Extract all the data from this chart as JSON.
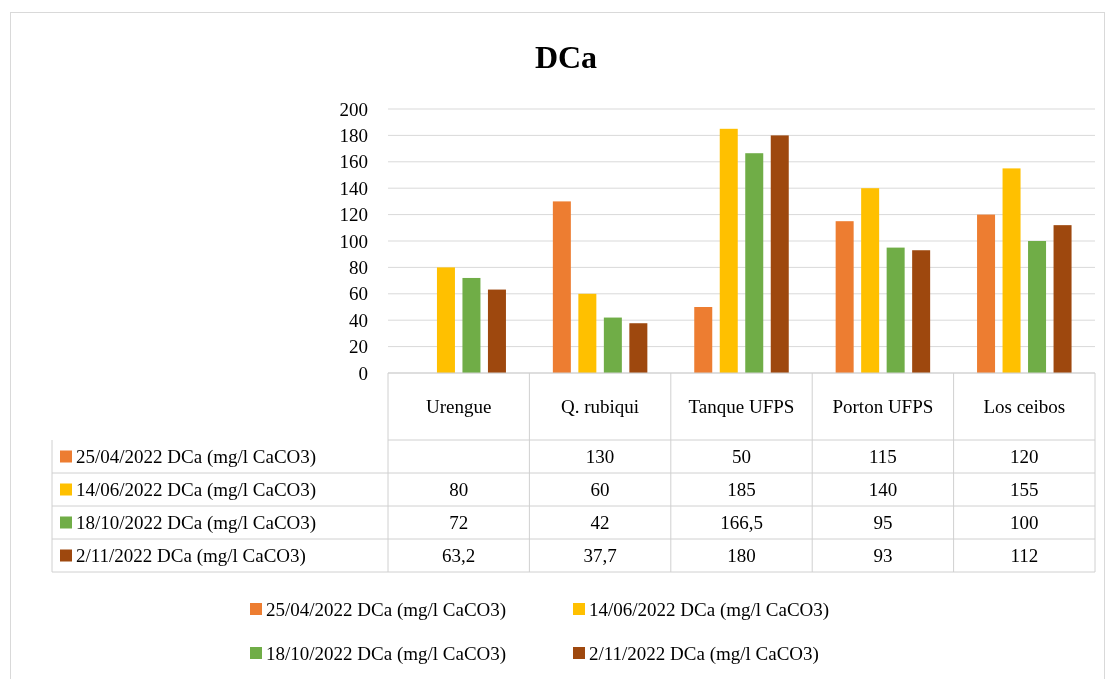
{
  "chart_data": {
    "type": "bar",
    "title": "DCa",
    "categories": [
      "Urengue",
      "Q. rubiqui",
      "Tanque UFPS",
      "Porton UFPS",
      "Los ceibos"
    ],
    "series": [
      {
        "name": "25/04/2022 DCa (mg/l CaCO3)",
        "color": "#ed7d31",
        "values": [
          null,
          130,
          50,
          115,
          120
        ],
        "value_labels": [
          null,
          "130",
          "50",
          "115",
          "120"
        ]
      },
      {
        "name": "14/06/2022 DCa (mg/l CaCO3)",
        "color": "#ffc000",
        "values": [
          80,
          60,
          185,
          140,
          155
        ],
        "value_labels": [
          "80",
          "60",
          "185",
          "140",
          "155"
        ]
      },
      {
        "name": "18/10/2022 DCa (mg/l CaCO3)",
        "color": "#70ad47",
        "values": [
          72,
          42,
          166.5,
          95,
          100
        ],
        "value_labels": [
          "72",
          "42",
          "166,5",
          "95",
          "100"
        ]
      },
      {
        "name": "2/11/2022 DCa (mg/l CaCO3)",
        "color": "#9e480e",
        "values": [
          63.2,
          37.7,
          180,
          93,
          112
        ],
        "value_labels": [
          "63,2",
          "37,7",
          "180",
          "93",
          "112"
        ]
      }
    ],
    "ylim": [
      0,
      200
    ],
    "yticks": [
      0,
      20,
      40,
      60,
      80,
      100,
      120,
      140,
      160,
      180,
      200
    ],
    "grid": "y",
    "legend": "bottom"
  }
}
